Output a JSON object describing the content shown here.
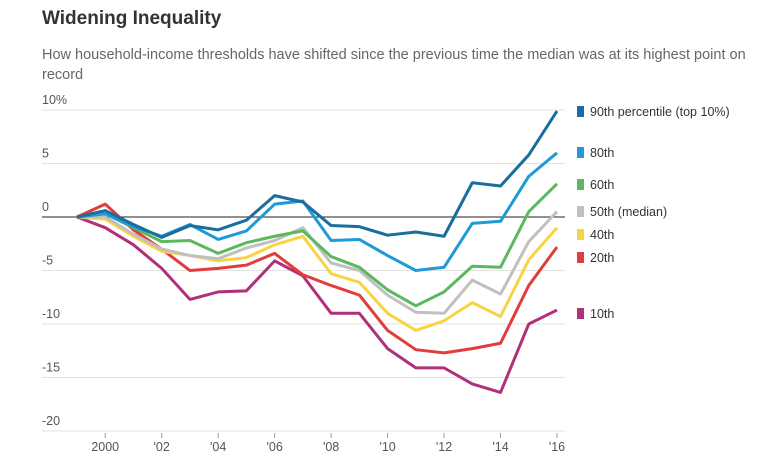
{
  "chart_data": {
    "type": "line",
    "title": "Widening Inequality",
    "subtitle": "How household-income thresholds have shifted since the previous time the median was at its highest point on record",
    "xlabel": "",
    "ylabel": "",
    "x": [
      1999,
      2000,
      2001,
      2002,
      2003,
      2004,
      2005,
      2006,
      2007,
      2008,
      2009,
      2010,
      2011,
      2012,
      2013,
      2014,
      2015,
      2016
    ],
    "xticks": [
      {
        "v": 2000,
        "label": "2000"
      },
      {
        "v": 2002,
        "label": "'02"
      },
      {
        "v": 2004,
        "label": "'04"
      },
      {
        "v": 2006,
        "label": "'06"
      },
      {
        "v": 2008,
        "label": "'08"
      },
      {
        "v": 2010,
        "label": "'10"
      },
      {
        "v": 2012,
        "label": "'12"
      },
      {
        "v": 2014,
        "label": "'14"
      },
      {
        "v": 2016,
        "label": "'16"
      }
    ],
    "yticks": [
      {
        "v": 10,
        "label": "10%"
      },
      {
        "v": 5,
        "label": "5"
      },
      {
        "v": 0,
        "label": "0"
      },
      {
        "v": -5,
        "label": "-5"
      },
      {
        "v": -10,
        "label": "-10"
      },
      {
        "v": -15,
        "label": "-15"
      },
      {
        "v": -20,
        "label": "-20"
      }
    ],
    "ylim": [
      -20,
      10
    ],
    "xlim": [
      1999,
      2016
    ],
    "grid": true,
    "legend": "right",
    "series": [
      {
        "name": "90th percentile (top 10%)",
        "color": "#1a6e9e",
        "values": [
          0,
          0.6,
          -0.7,
          -1.9,
          -0.8,
          -1.2,
          -0.3,
          2.0,
          1.4,
          -0.8,
          -0.9,
          -1.7,
          -1.4,
          -1.8,
          3.2,
          2.9,
          5.8,
          9.9
        ]
      },
      {
        "name": "80th",
        "color": "#1e9ad6",
        "values": [
          0,
          0.3,
          -0.9,
          -1.8,
          -0.7,
          -2.1,
          -1.3,
          1.2,
          1.5,
          -2.2,
          -2.1,
          -3.6,
          -5.0,
          -4.7,
          -0.6,
          -0.4,
          3.8,
          6.0
        ]
      },
      {
        "name": "60th",
        "color": "#5cb85c",
        "values": [
          0,
          0.3,
          -1.0,
          -2.3,
          -2.2,
          -3.4,
          -2.4,
          -1.8,
          -1.3,
          -3.7,
          -4.7,
          -6.8,
          -8.3,
          -7.0,
          -4.6,
          -4.7,
          0.5,
          3.1
        ]
      },
      {
        "name": "50th (median)",
        "color": "#c0c0c0",
        "values": [
          0,
          0,
          -1.6,
          -3.0,
          -3.6,
          -3.9,
          -2.9,
          -2.2,
          -1.0,
          -4.3,
          -5.0,
          -7.3,
          -8.9,
          -9.0,
          -5.9,
          -7.2,
          -2.3,
          0.5
        ]
      },
      {
        "name": "40th",
        "color": "#f7d443",
        "values": [
          0,
          -0.2,
          -1.8,
          -3.2,
          -3.6,
          -4.1,
          -3.8,
          -2.6,
          -1.8,
          -5.3,
          -6.1,
          -9.0,
          -10.6,
          -9.7,
          -8.0,
          -9.3,
          -4.0,
          -1.0
        ]
      },
      {
        "name": "20th",
        "color": "#e23d3d",
        "values": [
          0,
          1.2,
          -1.2,
          -3.0,
          -5.0,
          -4.8,
          -4.5,
          -3.4,
          -5.4,
          -6.4,
          -7.3,
          -10.6,
          -12.4,
          -12.7,
          -12.3,
          -11.8,
          -6.4,
          -2.8
        ]
      },
      {
        "name": "10th",
        "color": "#b0307a",
        "values": [
          0,
          -1.0,
          -2.6,
          -4.8,
          -7.7,
          -7.0,
          -6.9,
          -4.1,
          -5.5,
          -9.0,
          -9.0,
          -12.3,
          -14.1,
          -14.1,
          -15.6,
          -16.4,
          -10.0,
          -8.7
        ]
      }
    ]
  }
}
